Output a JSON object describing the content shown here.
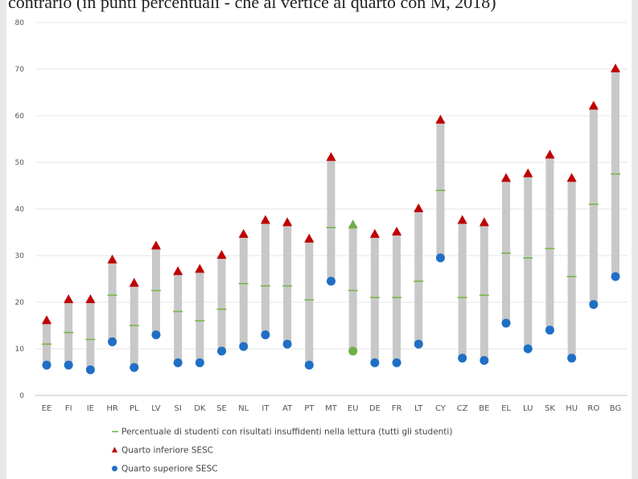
{
  "caption": "contrario (in punti percentuali - che al vertice al quarto con M, 2018)",
  "chart_data": {
    "type": "range",
    "categories": [
      "EE",
      "FI",
      "IE",
      "HR",
      "PL",
      "LV",
      "SI",
      "DK",
      "SE",
      "NL",
      "IT",
      "AT",
      "PT",
      "MT",
      "EU",
      "DE",
      "FR",
      "LT",
      "CY",
      "CZ",
      "BE",
      "EL",
      "LU",
      "SK",
      "HU",
      "RO",
      "BG"
    ],
    "series": [
      {
        "name": "Percentuale di studenti con risultati insuffidenti nella lettura (tutti gli studenti)",
        "values": [
          11,
          13.5,
          12,
          21.5,
          15,
          22.5,
          18,
          16,
          18.5,
          24,
          23.5,
          23.5,
          20.5,
          36,
          22.5,
          21,
          21,
          24.5,
          44,
          21,
          21.5,
          30.5,
          29.5,
          31.5,
          25.5,
          41,
          47.5
        ]
      },
      {
        "name": "Quarto inferiore SESC",
        "values": [
          16,
          20.5,
          20.5,
          29,
          24,
          32,
          26.5,
          27,
          30,
          34.5,
          37.5,
          37,
          33.5,
          51,
          36.5,
          34.5,
          35,
          40,
          59,
          37.5,
          37,
          46.5,
          47.5,
          51.5,
          46.5,
          62,
          70
        ]
      },
      {
        "name": "Quarto superiore SESC",
        "values": [
          6.5,
          6.5,
          5.5,
          11.5,
          6,
          13,
          7,
          7,
          9.5,
          10.5,
          13,
          11,
          6.5,
          24.5,
          9.5,
          7,
          7,
          11,
          29.5,
          8,
          7.5,
          15.5,
          10,
          14,
          8,
          19.5,
          25.5
        ]
      }
    ],
    "y_ticks": [
      0,
      10,
      20,
      30,
      40,
      50,
      60,
      70,
      80
    ],
    "ylim": [
      0,
      80
    ],
    "grid": true,
    "legend_position": "bottom-center",
    "colors": {
      "range_bar": "#c8c8c8",
      "mid": "#7ab648",
      "upper": "#c00000",
      "lower": "#1f6fc5",
      "eu_lower": "#70ad47",
      "eu_upper": "#70ad47",
      "grid": "#e6e6e6",
      "axis": "#bfbfbf"
    }
  },
  "legend": [
    {
      "symbol": "dash",
      "label": "Percentuale di studenti con risultati insuffidenti nella lettura (tutti gli studenti)"
    },
    {
      "symbol": "triangle",
      "label": "Quarto inferiore SESC"
    },
    {
      "symbol": "circle",
      "label": "Quarto superiore SESC"
    }
  ]
}
